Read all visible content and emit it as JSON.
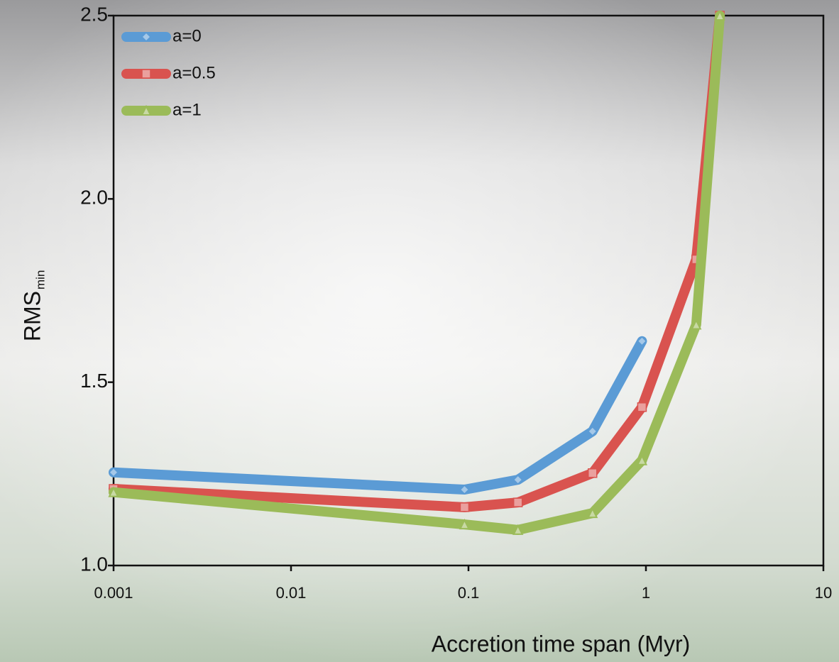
{
  "chart_data": {
    "type": "line",
    "x_label": "Accretion time span (Myr)",
    "y_label": "RMS",
    "y_label_sub": "min",
    "log_x": true,
    "xlim": [
      0.001,
      10
    ],
    "xticks": [
      0.001,
      0.01,
      0.1,
      1,
      10
    ],
    "ylim": [
      1.0,
      2.5
    ],
    "yticks": [
      {
        "value": 1.0,
        "label": "1.0"
      },
      1.5,
      {
        "value": 2.0,
        "label": "2.0"
      },
      2.5
    ],
    "legend": "top-left",
    "series": [
      {
        "name": "a=0",
        "color": "#5b9bd5",
        "marker": "diamond",
        "x": [
          0.001,
          0.095,
          0.19,
          0.5,
          0.95
        ],
        "values": [
          1.254,
          1.207,
          1.234,
          1.366,
          1.612
        ]
      },
      {
        "name": "a=0.5",
        "color": "#d9534f",
        "marker": "square",
        "x": [
          0.001,
          0.095,
          0.19,
          0.5,
          0.95,
          1.92,
          2.61
        ],
        "values": [
          1.209,
          1.159,
          1.172,
          1.252,
          1.432,
          1.835,
          2.5
        ]
      },
      {
        "name": "a=1",
        "color": "#9bbb59",
        "marker": "triangle",
        "x": [
          0.001,
          0.095,
          0.19,
          0.5,
          0.95,
          1.92,
          2.61
        ],
        "values": [
          1.2,
          1.112,
          1.097,
          1.143,
          1.287,
          1.657,
          2.5
        ]
      }
    ]
  }
}
